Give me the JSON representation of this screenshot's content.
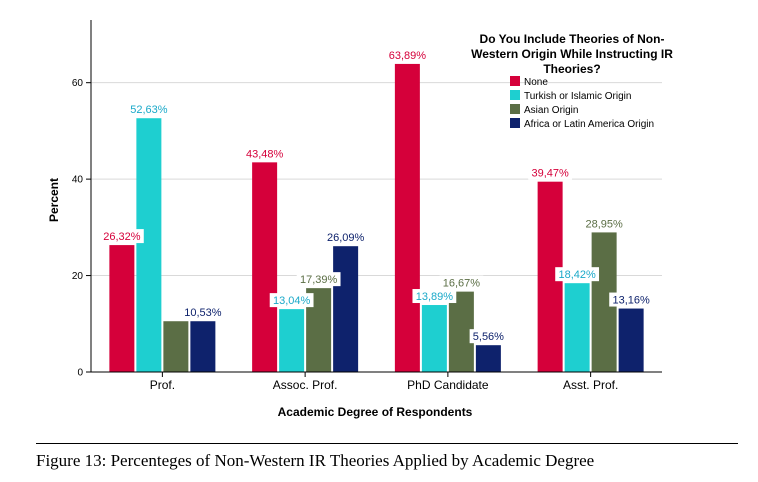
{
  "chart_data": {
    "type": "bar",
    "xlabel": "Academic Degree of Respondents",
    "ylabel": "Percent",
    "ylim": [
      0,
      73
    ],
    "yticks": [
      0,
      20,
      40,
      60
    ],
    "grid": "horizontal",
    "categories": [
      "Prof.",
      "Assoc. Prof.",
      "PhD Candidate",
      "Asst. Prof."
    ],
    "legend": {
      "title_lines": [
        "Do You Include Theories of Non-",
        "Western Origin While Instructing IR",
        "Theories?"
      ],
      "placement": "top-right"
    },
    "series": [
      {
        "name": "None",
        "color": "#d5003a",
        "values": [
          26.32,
          43.48,
          63.89,
          39.47
        ],
        "labels": [
          "26,32%",
          "43,48%",
          "63,89%",
          "39,47%"
        ]
      },
      {
        "name": "Turkish or Islamic Origin",
        "color": "#1ecfd0",
        "values": [
          52.63,
          13.04,
          13.89,
          18.42
        ],
        "labels": [
          "52,63%",
          "13,04%",
          "13,89%",
          "18,42%"
        ]
      },
      {
        "name": "Asian Origin",
        "color": "#5b6e45",
        "values": [
          10.53,
          17.39,
          16.67,
          28.95
        ],
        "labels": [
          null,
          "17,39%",
          "16,67%",
          "28,95%"
        ]
      },
      {
        "name": "Africa or Latin America Origin",
        "color": "#0e226c",
        "values": [
          10.53,
          26.09,
          5.56,
          13.16
        ],
        "labels": [
          "10,53%",
          "26,09%",
          "5,56%",
          "13,16%"
        ]
      }
    ]
  },
  "caption": "Figure 13: Percenteges of Non-Western IR Theories Applied by Academic Degree"
}
